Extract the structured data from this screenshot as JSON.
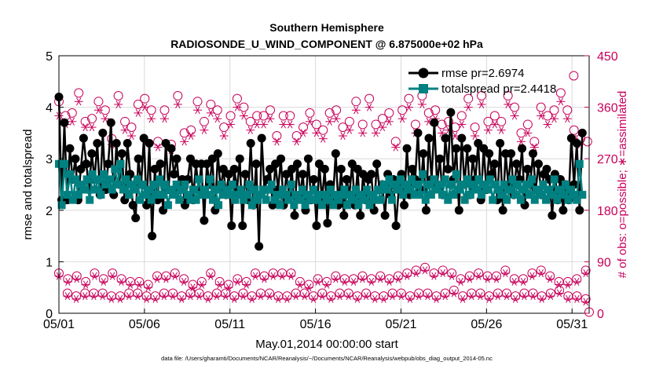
{
  "chart_data": {
    "type": "line",
    "title": "Southern Hemisphere",
    "subtitle": "RADIOSONDE_U_WIND_COMPONENT @ 6.875000e+02 hPa",
    "xlabel": "May.01,2014 00:00:00 start",
    "ylabel": "rmse and totalspread",
    "ylabel_right": "# of obs: o=possible; ∗=assimilated",
    "footnote": "data file: /Users/gharamti/Documents/NCAR/Reanalysis/~/Documents/NCAR/Reanalysis/webpub/obs_diag_output_2014-05.nc",
    "x_range": [
      1,
      32
    ],
    "ylim": [
      0,
      5
    ],
    "ylim_right": [
      0,
      450
    ],
    "x_ticks": [
      1,
      6,
      11,
      16,
      21,
      26,
      31
    ],
    "x_tick_labels": [
      "05/01",
      "05/06",
      "05/11",
      "05/16",
      "05/21",
      "05/26",
      "05/31"
    ],
    "y_ticks": [
      0,
      1,
      2,
      3,
      4,
      5
    ],
    "y_ticks_right": [
      0,
      90,
      180,
      270,
      360,
      450
    ],
    "grid": true,
    "legend_position": "top-right",
    "colors": {
      "rmse": "#000000",
      "totalspread": "#008080",
      "obs": "#c8005a"
    },
    "series": [
      {
        "name": "rmse",
        "legend_label": "rmse pr=2.6974",
        "values": [
          4.2,
          2.2,
          3.7,
          2.2,
          3.2,
          2.6,
          3.0,
          2.2,
          2.8,
          3.4,
          2.9,
          2.4,
          3.1,
          2.6,
          3.3,
          2.3,
          3.5,
          2.4,
          2.9,
          3.7,
          2.3,
          3.3,
          2.5,
          3.1,
          2.2,
          3.3,
          2.7,
          2.1,
          1.85,
          3.0,
          2.5,
          3.4,
          2.1,
          3.3,
          1.5,
          2.8,
          2.2,
          2.9,
          2.0,
          3.3,
          2.4,
          3.2,
          2.7,
          3.0,
          2.4,
          2.6,
          2.1,
          2.6,
          3.0,
          2.2,
          2.9,
          2.4,
          2.9,
          1.8,
          2.9,
          2.5,
          3.0,
          2.0,
          3.1,
          2.4,
          2.8,
          2.3,
          2.7,
          1.7,
          2.8,
          2.4,
          3.0,
          1.7,
          2.7,
          2.2,
          3.3,
          2.1,
          2.9,
          1.3,
          3.4,
          2.4,
          2.6,
          2.8,
          2.1,
          2.9,
          2.4,
          3.0,
          2.1,
          2.7,
          2.3,
          2.8,
          1.9,
          2.9,
          2.3,
          2.7,
          2.0,
          3.0,
          2.2,
          2.6,
          1.7,
          2.9,
          2.2,
          2.8,
          1.75,
          2.5,
          2.2,
          3.1,
          2.1,
          2.8,
          1.9,
          2.6,
          2.3,
          2.9,
          2.1,
          2.8,
          1.9,
          2.7,
          2.2,
          2.6,
          2.7,
          2.0,
          2.9,
          2.4,
          2.5,
          1.9,
          2.7,
          2.3,
          2.6,
          1.7,
          2.4,
          2.7,
          2.1,
          3.2,
          2.3,
          2.8,
          2.6,
          3.5,
          2.4,
          3.1,
          2.0,
          3.4,
          2.6,
          3.7,
          2.5,
          3.0,
          2.3,
          3.4,
          2.8,
          3.9,
          2.6,
          3.2,
          2.0,
          3.4,
          2.5,
          3.2,
          2.3,
          3.0,
          2.6,
          3.3,
          2.2,
          3.2,
          2.4,
          3.1,
          2.7,
          2.9,
          2.2,
          3.3,
          2.0,
          3.1,
          2.5,
          3.1,
          2.3,
          2.9,
          2.6,
          3.2,
          2.1,
          2.8,
          2.5,
          3.1,
          2.4,
          2.9,
          2.3,
          2.7,
          2.8,
          2.6,
          1.9,
          2.7,
          2.2,
          2.6,
          2.0,
          2.5,
          2.2,
          3.4,
          2.5,
          3.3,
          2.0,
          3.5
        ]
      },
      {
        "name": "totalspread",
        "legend_label": "totalspread pr=2.4418",
        "values": [
          2.9,
          2.1,
          2.9,
          2.3,
          2.7,
          2.2,
          2.6,
          2.3,
          2.5,
          2.4,
          2.6,
          2.2,
          2.7,
          2.4,
          2.6,
          2.3,
          2.7,
          2.5,
          2.6,
          2.4,
          2.8,
          2.5,
          2.9,
          2.4,
          2.6,
          2.3,
          2.5,
          2.4,
          2.6,
          2.2,
          2.5,
          2.3,
          2.4,
          2.2,
          2.5,
          2.3,
          2.6,
          2.3,
          2.5,
          2.1,
          2.4,
          2.3,
          2.5,
          2.2,
          2.4,
          2.5,
          2.3,
          2.2,
          2.4,
          2.2,
          2.6,
          2.3,
          2.4,
          2.3,
          2.6,
          2.2,
          2.4,
          2.1,
          2.5,
          2.3,
          2.4,
          2.3,
          2.5,
          2.2,
          2.3,
          2.4,
          2.2,
          2.3,
          2.5,
          2.1,
          2.4,
          2.2,
          2.3,
          2.4,
          2.2,
          2.4,
          2.5,
          2.2,
          2.3,
          2.1,
          2.4,
          2.3,
          2.2,
          2.5,
          2.1,
          2.3,
          2.2,
          2.4,
          2.1,
          2.3,
          2.2,
          2.4,
          2.2,
          2.3,
          2.1,
          2.3,
          2.2,
          2.4,
          2.1,
          2.3,
          2.2,
          2.3,
          2.4,
          2.1,
          2.3,
          2.2,
          2.4,
          2.1,
          2.3,
          2.2,
          2.4,
          2.1,
          2.3,
          2.2,
          2.4,
          2.2,
          2.5,
          2.4,
          2.6,
          2.2,
          2.5,
          2.4,
          2.6,
          2.3,
          2.5,
          2.4,
          2.6,
          2.3,
          2.5,
          2.3,
          2.7,
          2.2,
          2.5,
          2.3,
          2.6,
          2.4,
          2.5,
          2.3,
          2.6,
          2.2,
          2.5,
          2.3,
          2.7,
          2.4,
          2.5,
          2.2,
          2.6,
          2.3,
          2.5,
          2.4,
          2.6,
          2.3,
          2.5,
          2.4,
          2.6,
          2.2,
          2.5,
          2.4,
          2.3,
          2.5,
          2.2,
          2.4,
          2.6,
          2.3,
          2.5,
          2.2,
          2.4,
          2.5,
          2.3,
          2.6,
          2.2,
          2.4,
          2.3,
          2.5,
          2.2,
          2.4,
          2.3,
          2.6,
          2.2,
          2.4,
          2.3,
          2.5,
          2.2,
          2.4,
          2.3,
          2.2,
          2.9,
          2.3
        ]
      }
    ],
    "obs_possible": [
      370,
      345,
      350,
      385,
      335,
      340,
      370,
      355,
      305,
      380,
      335,
      325,
      365,
      375,
      355,
      300,
      355,
      295,
      380,
      315,
      320,
      370,
      335,
      365,
      355,
      325,
      345,
      375,
      360,
      335,
      345,
      345,
      355,
      310,
      345,
      345,
      310,
      325,
      350,
      330,
      320,
      350,
      355,
      325,
      335,
      370,
      330,
      375,
      330,
      340,
      350,
      300,
      355,
      375,
      330,
      380,
      350,
      355,
      330,
      335,
      325,
      345,
      375,
      325,
      380,
      335,
      345,
      335,
      380,
      360,
      315,
      330,
      300,
      360,
      345,
      355,
      385,
      355,
      320,
      305
    ],
    "obs_assimilated": [
      345,
      330,
      335,
      370,
      325,
      325,
      355,
      340,
      295,
      365,
      320,
      310,
      350,
      360,
      340,
      290,
      340,
      285,
      365,
      300,
      310,
      355,
      320,
      350,
      340,
      310,
      330,
      360,
      345,
      320,
      330,
      330,
      340,
      300,
      330,
      330,
      300,
      315,
      335,
      315,
      305,
      335,
      340,
      310,
      320,
      355,
      315,
      360,
      315,
      325,
      335,
      290,
      340,
      360,
      315,
      365,
      335,
      340,
      315,
      320,
      310,
      330,
      360,
      310,
      365,
      320,
      330,
      320,
      365,
      345,
      300,
      315,
      290,
      345,
      330,
      340,
      370,
      340,
      305,
      295
    ],
    "obs_low_possible": [
      70,
      60,
      65,
      55,
      70,
      60,
      70,
      60,
      55,
      55,
      50,
      65,
      65,
      70,
      60,
      50,
      55,
      70,
      55,
      50,
      60,
      55,
      70,
      65,
      70,
      70,
      70,
      55,
      50,
      60,
      55,
      65,
      60,
      60,
      65,
      60,
      65,
      60,
      65,
      70,
      75,
      80,
      70,
      75,
      70,
      60,
      65,
      70,
      65,
      65,
      75,
      60,
      60,
      70,
      75,
      65,
      55,
      55,
      60,
      75
    ],
    "obs_low_assimilated": [
      65,
      55,
      60,
      50,
      65,
      55,
      65,
      55,
      50,
      50,
      45,
      60,
      60,
      65,
      55,
      45,
      50,
      65,
      50,
      45,
      55,
      50,
      65,
      60,
      65,
      65,
      65,
      50,
      45,
      55,
      50,
      60,
      55,
      55,
      60,
      55,
      60,
      55,
      60,
      65,
      70,
      75,
      65,
      70,
      65,
      55,
      60,
      65,
      60,
      60,
      70,
      55,
      55,
      65,
      70,
      60,
      50,
      50,
      55,
      70
    ],
    "obs_bottom_possible": [
      35,
      30,
      35,
      35,
      35,
      30,
      30,
      35,
      35,
      30,
      30,
      35,
      35,
      30,
      35,
      35,
      30,
      35,
      35,
      30,
      35,
      30,
      35,
      35,
      30,
      30,
      35,
      35,
      30,
      35,
      30,
      35,
      35,
      30,
      35,
      30,
      30,
      35,
      35,
      30,
      35,
      35,
      30,
      35,
      40,
      30,
      35,
      35,
      30,
      35,
      35,
      30,
      35,
      35,
      30,
      35,
      40,
      30,
      30,
      25
    ],
    "obs_bottom_assimilated": [
      30,
      25,
      30,
      30,
      30,
      25,
      25,
      30,
      30,
      25,
      25,
      30,
      30,
      25,
      30,
      30,
      25,
      30,
      30,
      25,
      30,
      25,
      30,
      30,
      25,
      25,
      30,
      30,
      25,
      30,
      25,
      30,
      30,
      25,
      30,
      25,
      25,
      30,
      30,
      25,
      30,
      30,
      25,
      30,
      35,
      25,
      30,
      30,
      25,
      30,
      30,
      25,
      30,
      30,
      25,
      30,
      35,
      25,
      25,
      20
    ],
    "obs_extra_possible": [
      {
        "x": 32.0,
        "y": 2
      },
      {
        "x": 31.9,
        "y": 300
      }
    ],
    "obs_highlight_possible": [
      {
        "x": 31.1,
        "y": 415
      }
    ]
  }
}
